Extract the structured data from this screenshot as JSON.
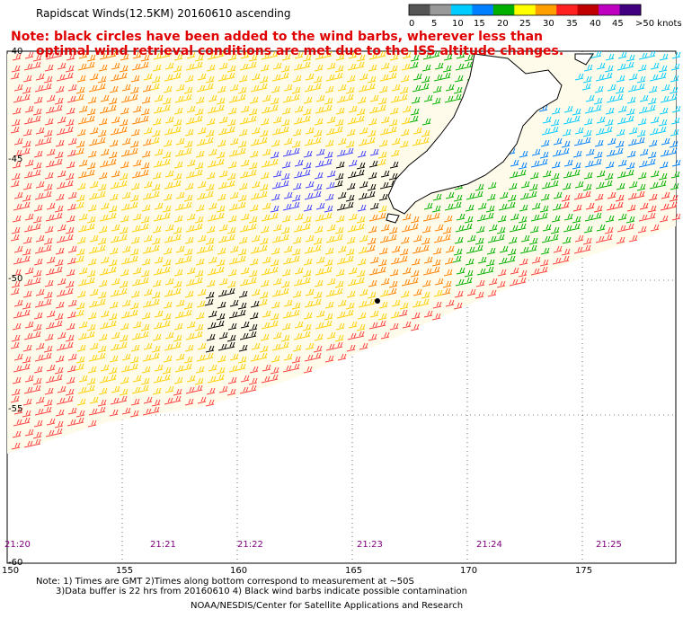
{
  "title": "Rapidscat Winds(12.5KM) 20160610 ascending",
  "note_line1": "Note: black circles have been added to the wind barbs, wherever less than",
  "note_line2": "optimal wind retrieval conditions are met due to the ISS altitude changes.",
  "legend": {
    "labels": [
      "0",
      "5",
      "10",
      "15",
      "20",
      "25",
      "30",
      "35",
      "40",
      "45",
      ">50 knots"
    ],
    "colors": [
      "#555555",
      "#999999",
      "#00ccff",
      "#0080ff",
      "#00b000",
      "#ffff00",
      "#ffa000",
      "#ff2020",
      "#c00000",
      "#c000c0",
      "#400080"
    ]
  },
  "lat_labels": [
    "-40",
    "-45",
    "-50",
    "-55",
    "-60"
  ],
  "lon_labels": [
    "150",
    "155",
    "160",
    "165",
    "170",
    "175"
  ],
  "time_labels": [
    "21:20",
    "21:21",
    "21:22",
    "21:23",
    "21:24",
    "21:25"
  ],
  "footer": {
    "line1": "Note: 1) Times are GMT 2)Times along bottom correspond to measurement at ~50S",
    "line2": "3)Data buffer is 22 hrs from 20160610 4) Black wind barbs indicate possible contamination",
    "line3": "NOAA/NESDIS/Center for Satellite Applications and Research"
  }
}
